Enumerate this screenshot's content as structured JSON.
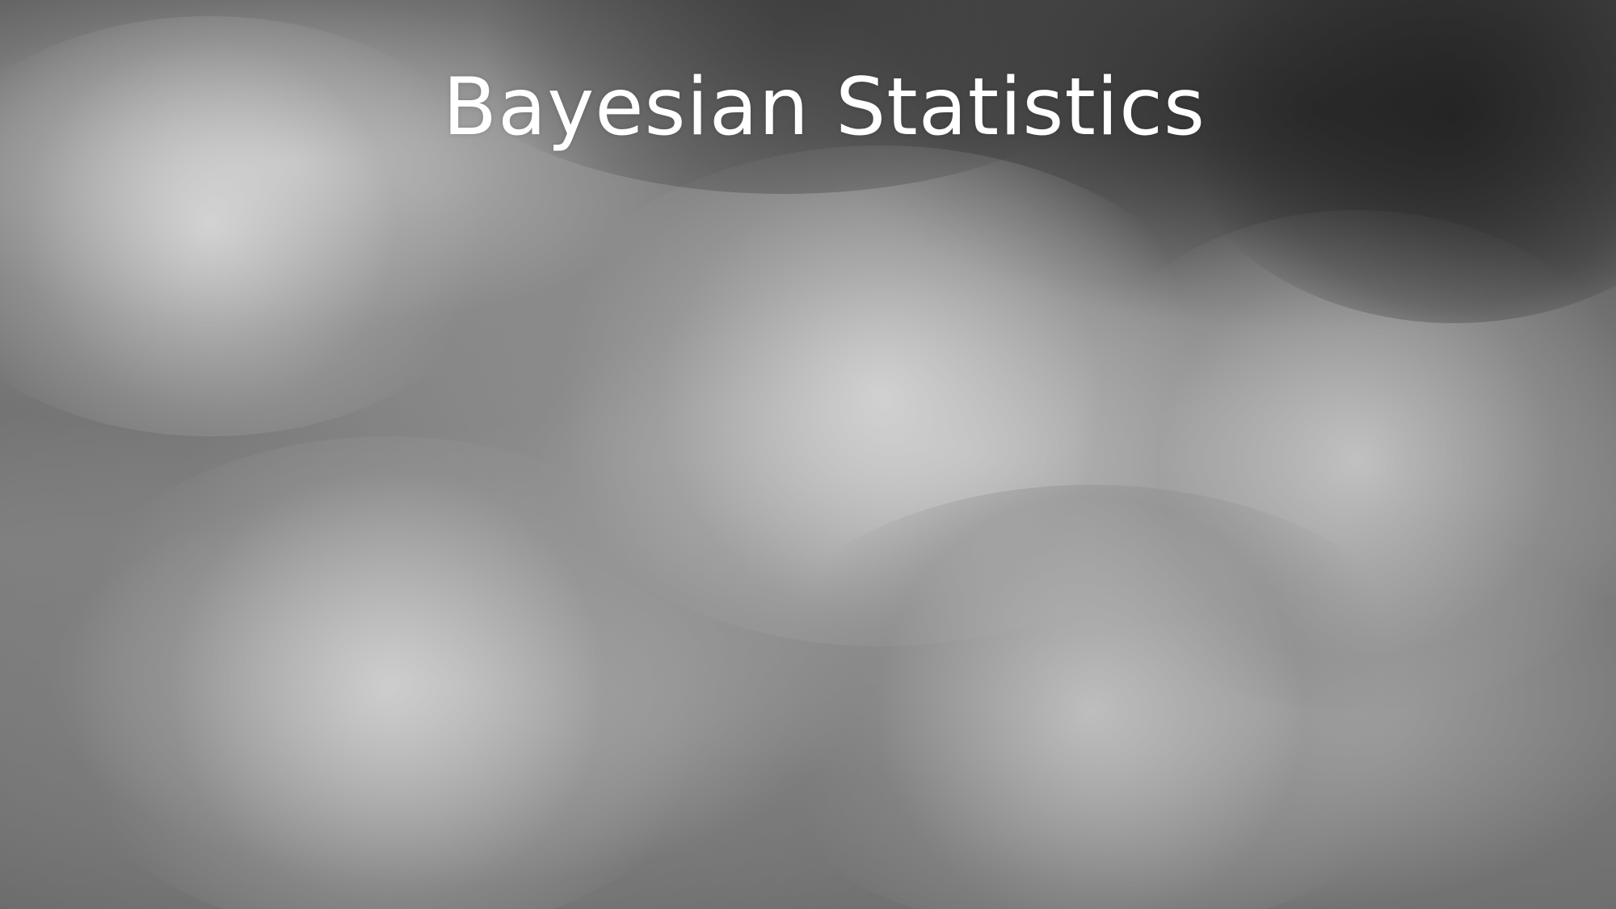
{
  "slide": {
    "title": "Bayesian Statistics",
    "background": {
      "image": "smoke-cloud-photo",
      "palette": [
        "#3a3a3a",
        "#6c6c6c",
        "#a8a8a8",
        "#d6d6d6"
      ]
    },
    "title_color": "#ffffff"
  }
}
